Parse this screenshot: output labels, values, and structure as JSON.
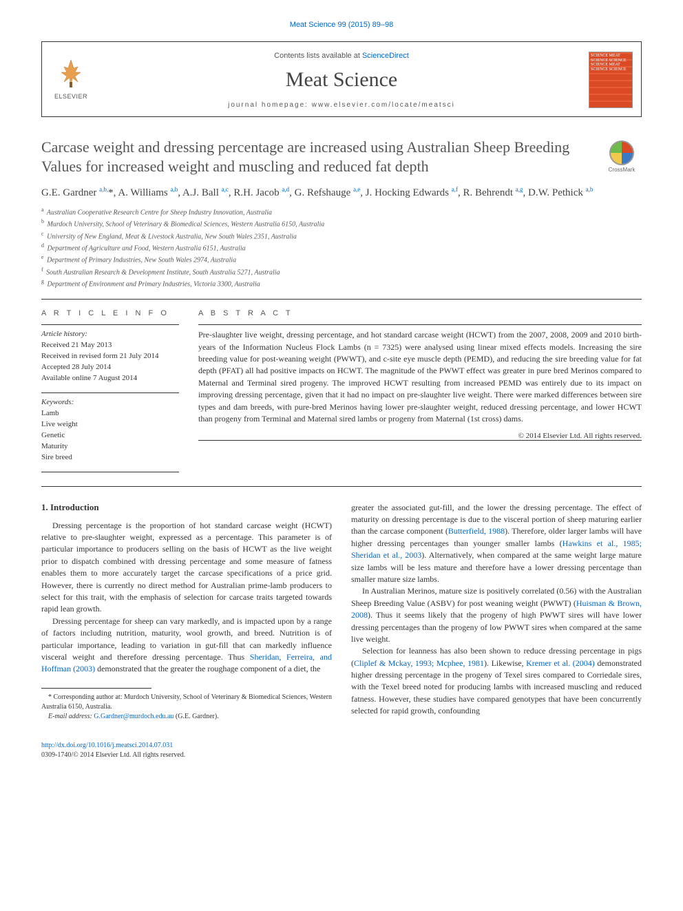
{
  "top_citation": "Meat Science 99 (2015) 89–98",
  "header": {
    "contents_label": "Contents lists available at ",
    "contents_link": "ScienceDirect",
    "journal": "Meat Science",
    "homepage_label": "journal homepage: www.elsevier.com/locate/meatsci",
    "publisher": "ELSEVIER",
    "cover_lines": "SCIENCE MEAT SCIENCE SCIENCE SCIENCE MEAT SCIENCE SCIENCE"
  },
  "crossmark": "CrossMark",
  "title": "Carcase weight and dressing percentage are increased using Australian Sheep Breeding Values for increased weight and muscling and reduced fat depth",
  "authors_html": "G.E. Gardner <sup>a,b,</sup><span class='star'>*</span>, A. Williams <sup>a,b</sup>, A.J. Ball <sup>a,c</sup>, R.H. Jacob <sup>a,d</sup>, G. Refshauge <sup>a,e</sup>, J. Hocking Edwards <sup>a,f</sup>, R. Behrendt <sup>a,g</sup>, D.W. Pethick <sup>a,b</sup>",
  "affiliations": [
    {
      "k": "a",
      "t": "Australian Cooperative Research Centre for Sheep Industry Innovation, Australia"
    },
    {
      "k": "b",
      "t": "Murdoch University, School of Veterinary & Biomedical Sciences, Western Australia 6150, Australia"
    },
    {
      "k": "c",
      "t": "University of New England, Meat & Livestock Australia, New South Wales 2351, Australia"
    },
    {
      "k": "d",
      "t": "Department of Agriculture and Food, Western Australia 6151, Australia"
    },
    {
      "k": "e",
      "t": "Department of Primary Industries, New South Wales 2974, Australia"
    },
    {
      "k": "f",
      "t": "South Australian Research & Development Institute, South Australia 5271, Australia"
    },
    {
      "k": "g",
      "t": "Department of Environment and Primary Industries, Victoria 3300, Australia"
    }
  ],
  "article_info": {
    "heading": "A R T I C L E   I N F O",
    "history_label": "Article history:",
    "history": [
      "Received 21 May 2013",
      "Received in revised form 21 July 2014",
      "Accepted 28 July 2014",
      "Available online 7 August 2014"
    ],
    "keywords_label": "Keywords:",
    "keywords": [
      "Lamb",
      "Live weight",
      "Genetic",
      "Maturity",
      "Sire breed"
    ]
  },
  "abstract": {
    "heading": "A B S T R A C T",
    "text": "Pre-slaughter live weight, dressing percentage, and hot standard carcase weight (HCWT) from the 2007, 2008, 2009 and 2010 birth-years of the Information Nucleus Flock Lambs (n = 7325) were analysed using linear mixed effects models. Increasing the sire breeding value for post-weaning weight (PWWT), and c-site eye muscle depth (PEMD), and reducing the sire breeding value for fat depth (PFAT) all had positive impacts on HCWT. The magnitude of the PWWT effect was greater in pure bred Merinos compared to Maternal and Terminal sired progeny. The improved HCWT resulting from increased PEMD was entirely due to its impact on improving dressing percentage, given that it had no impact on pre-slaughter live weight. There were marked differences between sire types and dam breeds, with pure-bred Merinos having lower pre-slaughter weight, reduced dressing percentage, and lower HCWT than progeny from Terminal and Maternal sired lambs or progeny from Maternal (1st cross) dams.",
    "copyright": "© 2014 Elsevier Ltd. All rights reserved."
  },
  "sections": {
    "intro_heading": "1. Introduction",
    "col1": [
      "Dressing percentage is the proportion of hot standard carcase weight (HCWT) relative to pre-slaughter weight, expressed as a percentage. This parameter is of particular importance to producers selling on the basis of HCWT as the live weight prior to dispatch combined with dressing percentage and some measure of fatness enables them to more accurately target the carcase specifications of a price grid. However, there is currently no direct method for Australian prime-lamb producers to select for this trait, with the emphasis of selection for carcase traits targeted towards rapid lean growth.",
      "Dressing percentage for sheep can vary markedly, and is impacted upon by a range of factors including nutrition, maturity, wool growth, and breed. Nutrition is of particular importance, leading to variation in gut-fill that can markedly influence visceral weight and therefore dressing percentage. Thus <a>Sheridan, Ferreira, and Hoffman (2003)</a> demonstrated that the greater the roughage component of a diet, the"
    ],
    "col2": [
      "greater the associated gut-fill, and the lower the dressing percentage. The effect of maturity on dressing percentage is due to the visceral portion of sheep maturing earlier than the carcase component (<a>Butterfield, 1988</a>). Therefore, older larger lambs will have higher dressing percentages than younger smaller lambs (<a>Hawkins et al., 1985; Sheridan et al., 2003</a>). Alternatively, when compared at the same weight large mature size lambs will be less mature and therefore have a lower dressing percentage than smaller mature size lambs.",
      "In Australian Merinos, mature size is positively correlated (0.56) with the Australian Sheep Breeding Value (ASBV) for post weaning weight (PWWT) (<a>Huisman & Brown, 2008</a>). Thus it seems likely that the progeny of high PWWT sires will have lower dressing percentages than the progeny of low PWWT sires when compared at the same live weight.",
      "Selection for leanness has also been shown to reduce dressing percentage in pigs (<a>Cliplef & Mckay, 1993; Mcphee, 1981</a>). Likewise, <a>Kremer et al. (2004)</a> demonstrated higher dressing percentage in the progeny of Texel sires compared to Corriedale sires, with the Texel breed noted for producing lambs with increased muscling and reduced fatness. However, these studies have compared genotypes that have been concurrently selected for rapid growth, confounding"
    ]
  },
  "footnote": {
    "star_text": "Corresponding author at: Murdoch University, School of Veterinary & Biomedical Sciences, Western Australia 6150, Australia.",
    "email_label": "E-mail address:",
    "email": "G.Gardner@murdoch.edu.au",
    "email_who": "(G.E. Gardner)."
  },
  "bottom": {
    "doi": "http://dx.doi.org/10.1016/j.meatsci.2014.07.031",
    "issn_copy": "0309-1740/© 2014 Elsevier Ltd. All rights reserved."
  },
  "colors": {
    "link": "#0066cc",
    "text": "#333333",
    "heading": "#555555",
    "cover_bg": "#d94a25"
  }
}
